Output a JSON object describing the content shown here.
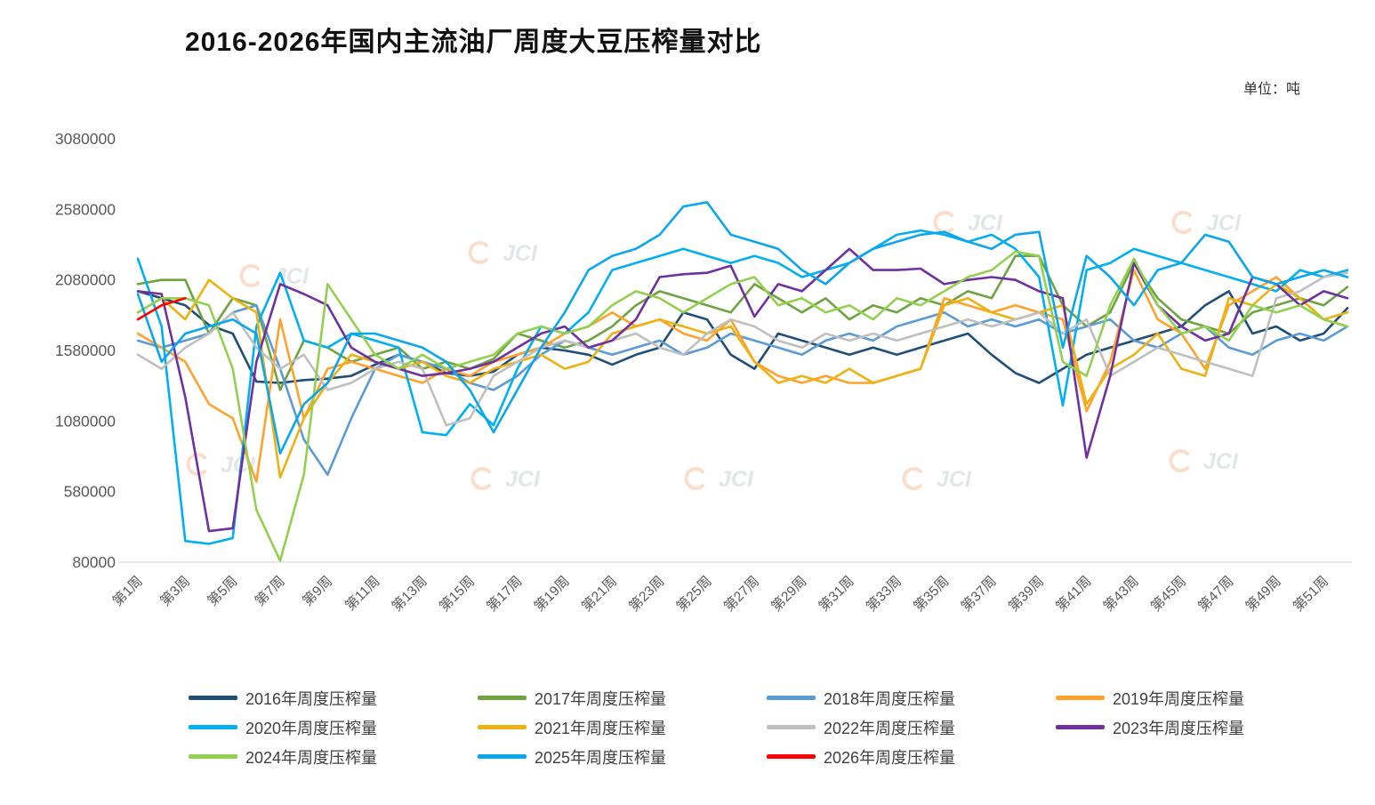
{
  "chart_data": {
    "type": "line",
    "title": "2016-2026年国内主流油厂周度大豆压榨量对比",
    "unit_label": "单位：吨",
    "watermark": "JCI",
    "xlabel": "",
    "ylabel": "",
    "ylim": [
      80000,
      3080000
    ],
    "yticks": [
      80000,
      580000,
      1080000,
      1580000,
      2080000,
      2580000,
      3080000
    ],
    "weeks": 52,
    "xtick_labels": [
      "第1周",
      "第3周",
      "第5周",
      "第7周",
      "第9周",
      "第11周",
      "第13周",
      "第15周",
      "第17周",
      "第19周",
      "第21周",
      "第23周",
      "第25周",
      "第27周",
      "第29周",
      "第31周",
      "第33周",
      "第35周",
      "第37周",
      "第39周",
      "第41周",
      "第43周",
      "第45周",
      "第47周",
      "第49周",
      "第51周"
    ],
    "grid": false,
    "legend_position": "bottom",
    "series": [
      {
        "name": "2016",
        "label": "2016年周度压榨量",
        "color": "#1F4E79",
        "values": [
          2000000,
          1950000,
          1900000,
          1760000,
          1700000,
          1360000,
          1350000,
          1370000,
          1380000,
          1400000,
          1480000,
          1550000,
          1500000,
          1420000,
          1400000,
          1430000,
          1550000,
          1600000,
          1580000,
          1550000,
          1480000,
          1550000,
          1600000,
          1850000,
          1800000,
          1550000,
          1450000,
          1700000,
          1650000,
          1600000,
          1550000,
          1600000,
          1550000,
          1600000,
          1650000,
          1700000,
          1550000,
          1420000,
          1350000,
          1450000,
          1550000,
          1600000,
          1650000,
          1700000,
          1750000,
          1900000,
          2000000,
          1700000,
          1750000,
          1650000,
          1700000,
          1880000
        ]
      },
      {
        "name": "2017",
        "label": "2017年周度压榨量",
        "color": "#6FA341",
        "values": [
          2050000,
          2080000,
          2080000,
          1700000,
          1950000,
          1900000,
          1300000,
          1650000,
          1600000,
          1500000,
          1550000,
          1600000,
          1450000,
          1500000,
          1450000,
          1520000,
          1700000,
          1650000,
          1600000,
          1650000,
          1750000,
          1900000,
          2000000,
          1950000,
          1900000,
          1850000,
          2050000,
          1950000,
          1850000,
          1950000,
          1800000,
          1900000,
          1850000,
          1950000,
          1900000,
          2000000,
          1950000,
          2250000,
          2250000,
          1900000,
          1750000,
          1850000,
          2200000,
          1950000,
          1800000,
          1750000,
          1700000,
          1850000,
          1900000,
          1950000,
          1900000,
          2030000
        ]
      },
      {
        "name": "2018",
        "label": "2018年周度压榨量",
        "color": "#5B9BD5",
        "values": [
          1650000,
          1600000,
          1650000,
          1700000,
          1850000,
          1900000,
          1450000,
          950000,
          700000,
          1100000,
          1450000,
          1550000,
          1500000,
          1450000,
          1350000,
          1300000,
          1400000,
          1550000,
          1650000,
          1600000,
          1550000,
          1600000,
          1650000,
          1550000,
          1600000,
          1700000,
          1650000,
          1600000,
          1550000,
          1650000,
          1700000,
          1650000,
          1750000,
          1800000,
          1850000,
          1750000,
          1800000,
          1750000,
          1800000,
          1700000,
          1750000,
          1800000,
          1650000,
          1600000,
          1700000,
          1750000,
          1600000,
          1550000,
          1650000,
          1700000,
          1650000,
          1750000
        ]
      },
      {
        "name": "2019",
        "label": "2019年周度压榨量",
        "color": "#FFA22B",
        "values": [
          1700000,
          1600000,
          1500000,
          1200000,
          1100000,
          650000,
          1800000,
          1100000,
          1450000,
          1500000,
          1450000,
          1400000,
          1350000,
          1450000,
          1400000,
          1500000,
          1550000,
          1600000,
          1700000,
          1750000,
          1850000,
          1750000,
          1800000,
          1700000,
          1650000,
          1800000,
          1500000,
          1400000,
          1350000,
          1400000,
          1350000,
          1350000,
          1400000,
          1450000,
          1950000,
          1900000,
          1850000,
          1900000,
          1850000,
          1800000,
          1150000,
          1500000,
          2150000,
          1800000,
          1700000,
          1450000,
          1900000,
          2000000,
          2100000,
          1950000,
          1800000,
          1750000
        ]
      },
      {
        "name": "2020",
        "label": "2020年周度压榨量",
        "color": "#00B0F0",
        "values": [
          2230000,
          1750000,
          230000,
          210000,
          250000,
          1750000,
          2130000,
          1650000,
          1600000,
          1700000,
          1650000,
          1600000,
          1000000,
          980000,
          1200000,
          1050000,
          1450000,
          1750000,
          1700000,
          1850000,
          2150000,
          2200000,
          2250000,
          2300000,
          2250000,
          2200000,
          2250000,
          2200000,
          2100000,
          2150000,
          2200000,
          2300000,
          2400000,
          2430000,
          2400000,
          2350000,
          2400000,
          2300000,
          2100000,
          1190000,
          2150000,
          2200000,
          2300000,
          2250000,
          2200000,
          2150000,
          2100000,
          2050000,
          2000000,
          2150000,
          2100000,
          2150000
        ]
      },
      {
        "name": "2021",
        "label": "2021年周度压榨量",
        "color": "#EDB211",
        "values": [
          1850000,
          1950000,
          1800000,
          2080000,
          1950000,
          1850000,
          680000,
          1100000,
          1350000,
          1550000,
          1500000,
          1450000,
          1500000,
          1400000,
          1350000,
          1450000,
          1500000,
          1550000,
          1450000,
          1500000,
          1700000,
          1750000,
          1800000,
          1750000,
          1700000,
          1750000,
          1500000,
          1350000,
          1400000,
          1350000,
          1450000,
          1350000,
          1400000,
          1450000,
          1900000,
          1950000,
          1850000,
          1800000,
          1850000,
          1900000,
          1200000,
          1450000,
          1550000,
          1700000,
          1450000,
          1400000,
          1950000,
          1900000,
          2050000,
          1950000,
          1800000,
          1850000
        ]
      },
      {
        "name": "2022",
        "label": "2022年周度压榨量",
        "color": "#BFBFBF",
        "values": [
          1550000,
          1450000,
          1600000,
          1700000,
          1850000,
          1600000,
          1450000,
          1550000,
          1300000,
          1350000,
          1450000,
          1500000,
          1450000,
          1050000,
          1100000,
          1400000,
          1500000,
          1600000,
          1650000,
          1600000,
          1650000,
          1700000,
          1600000,
          1550000,
          1700000,
          1800000,
          1750000,
          1650000,
          1600000,
          1700000,
          1650000,
          1700000,
          1650000,
          1700000,
          1750000,
          1800000,
          1750000,
          1800000,
          1850000,
          1700000,
          1800000,
          1400000,
          1500000,
          1600000,
          1550000,
          1500000,
          1450000,
          1400000,
          1950000,
          2000000,
          2100000,
          2130000
        ]
      },
      {
        "name": "2023",
        "label": "2023年周度压榨量",
        "color": "#7030A0",
        "values": [
          2000000,
          1980000,
          1250000,
          300000,
          320000,
          1500000,
          2050000,
          1980000,
          1900000,
          1600000,
          1500000,
          1450000,
          1400000,
          1420000,
          1450000,
          1500000,
          1600000,
          1700000,
          1750000,
          1600000,
          1650000,
          1800000,
          2100000,
          2120000,
          2130000,
          2180000,
          1820000,
          2050000,
          2000000,
          2150000,
          2300000,
          2150000,
          2150000,
          2160000,
          2050000,
          2080000,
          2100000,
          2080000,
          2000000,
          1950000,
          820000,
          1400000,
          2200000,
          1900000,
          1750000,
          1650000,
          1700000,
          2100000,
          2050000,
          1900000,
          2000000,
          1950000
        ]
      },
      {
        "name": "2024",
        "label": "2024年周度压榨量",
        "color": "#92D050",
        "values": [
          1850000,
          1950000,
          1950000,
          1900000,
          1450000,
          450000,
          90000,
          700000,
          2050000,
          1800000,
          1550000,
          1450000,
          1550000,
          1450000,
          1500000,
          1550000,
          1700000,
          1750000,
          1700000,
          1750000,
          1900000,
          2000000,
          1950000,
          1850000,
          1950000,
          2050000,
          2100000,
          1900000,
          1950000,
          1850000,
          1900000,
          1800000,
          1950000,
          1900000,
          2000000,
          2100000,
          2150000,
          2280000,
          2250000,
          1500000,
          1400000,
          1900000,
          2230000,
          1900000,
          1700000,
          1750000,
          1650000,
          1900000,
          1850000,
          1900000,
          1800000,
          1750000
        ]
      },
      {
        "name": "2025",
        "label": "2025年周度压榨量",
        "color": "#0AA6EE",
        "values": [
          1980000,
          1500000,
          1700000,
          1750000,
          1800000,
          1700000,
          850000,
          1200000,
          1350000,
          1700000,
          1700000,
          1650000,
          1600000,
          1500000,
          1300000,
          1000000,
          1300000,
          1600000,
          1850000,
          2150000,
          2250000,
          2300000,
          2400000,
          2600000,
          2630000,
          2400000,
          2350000,
          2300000,
          2150000,
          2050000,
          2200000,
          2300000,
          2350000,
          2400000,
          2420000,
          2350000,
          2300000,
          2400000,
          2420000,
          1600000,
          2250000,
          2100000,
          1900000,
          2150000,
          2200000,
          2400000,
          2350000,
          2100000,
          2050000,
          2100000,
          2150000,
          2100000
        ]
      },
      {
        "name": "2026",
        "label": "2026年周度压榨量",
        "color": "#FF0000",
        "values": [
          1800000,
          1900000,
          1950000,
          null,
          null,
          null,
          null,
          null,
          null,
          null,
          null,
          null,
          null,
          null,
          null,
          null,
          null,
          null,
          null,
          null,
          null,
          null,
          null,
          null,
          null,
          null,
          null,
          null,
          null,
          null,
          null,
          null,
          null,
          null,
          null,
          null,
          null,
          null,
          null,
          null,
          null,
          null,
          null,
          null,
          null,
          null,
          null,
          null,
          null,
          null,
          null,
          null
        ]
      }
    ]
  }
}
